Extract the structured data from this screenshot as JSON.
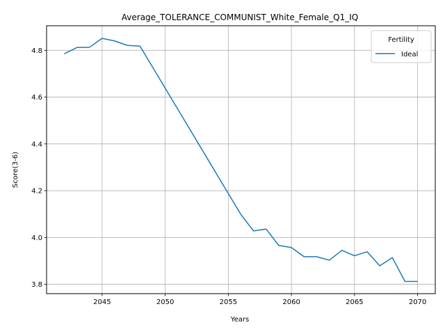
{
  "chart_data": {
    "type": "line",
    "title": "Average_TOLERANCE_COMMUNIST_White_Female_Q1_IQ",
    "xlabel": "Years",
    "ylabel": "Score(3-6)",
    "xlim": [
      2040.6,
      2071.4
    ],
    "ylim": [
      3.76,
      4.905
    ],
    "xticks": [
      2045,
      2050,
      2055,
      2060,
      2065,
      2070
    ],
    "yticks": [
      3.8,
      4.0,
      4.2,
      4.4,
      4.6,
      4.8
    ],
    "xtick_labels": [
      "2045",
      "2050",
      "2055",
      "2060",
      "2065",
      "2070"
    ],
    "ytick_labels": [
      "3.8",
      "4.0",
      "4.2",
      "4.4",
      "4.6",
      "4.8"
    ],
    "grid": true,
    "legend": {
      "title": "Fertility",
      "placement": "top-right"
    },
    "series": [
      {
        "name": "Ideal",
        "color": "#1f77b4",
        "x": [
          2042,
          2043,
          2044,
          2045,
          2046,
          2047,
          2048,
          2049,
          2050,
          2051,
          2052,
          2053,
          2054,
          2055,
          2056,
          2057,
          2058,
          2059,
          2060,
          2061,
          2062,
          2063,
          2064,
          2065,
          2066,
          2067,
          2068,
          2069,
          2070
        ],
        "y": [
          4.785,
          4.812,
          4.813,
          4.851,
          4.84,
          4.821,
          4.818,
          4.728,
          4.638,
          4.548,
          4.458,
          4.368,
          4.278,
          4.188,
          4.098,
          4.028,
          4.036,
          3.966,
          3.957,
          3.918,
          3.918,
          3.903,
          3.945,
          3.922,
          3.939,
          3.879,
          3.914,
          3.812,
          3.812
        ]
      }
    ]
  }
}
